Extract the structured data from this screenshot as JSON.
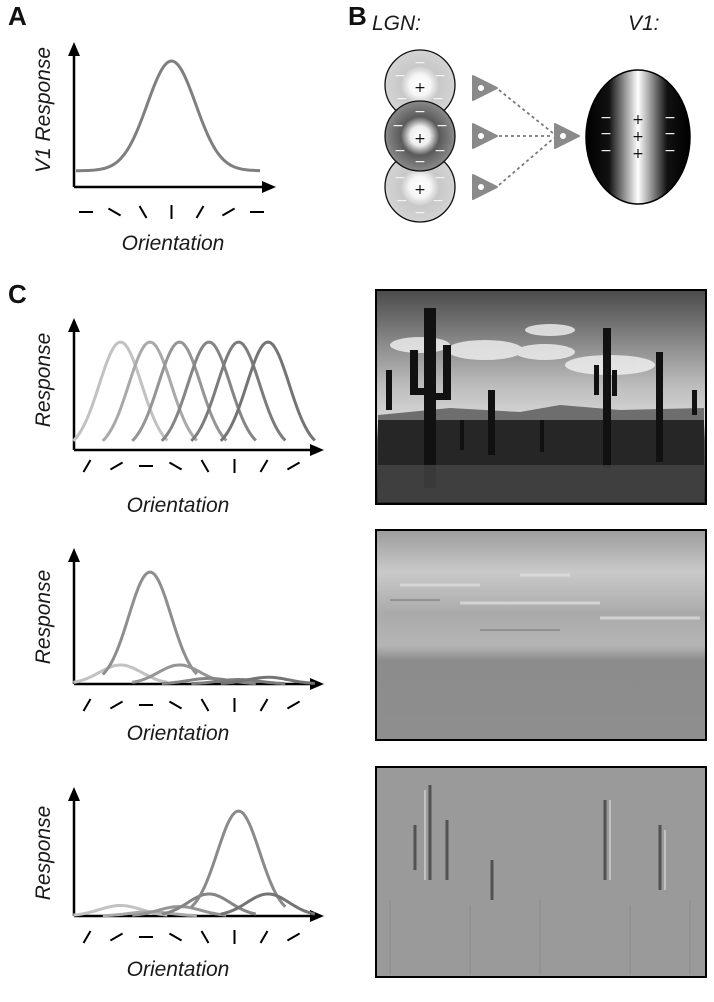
{
  "panels": {
    "a": {
      "letter": "A",
      "ylabel": "V1 Response",
      "xlabel": "Orientation",
      "orientations_deg": [
        0,
        -30,
        -60,
        90,
        60,
        30,
        0
      ]
    },
    "b": {
      "letter": "B",
      "lgn_label": "LGN:",
      "v1_label": "V1:",
      "plus": "+",
      "minus": "−"
    },
    "c": {
      "letter": "C",
      "ylabel": "Response",
      "xlabel": "Orientation",
      "orientations_deg": [
        60,
        30,
        0,
        -30,
        -60,
        90,
        60,
        30
      ]
    }
  },
  "chart_data": [
    {
      "type": "line",
      "panel": "A",
      "x": [
        0,
        1,
        2,
        3,
        4,
        5,
        6
      ],
      "series": [
        {
          "values": [
            0.07,
            0.1,
            0.45,
            1.0,
            0.45,
            0.1,
            0.07
          ]
        }
      ],
      "xlabel": "Orientation",
      "ylabel": "V1 Response"
    },
    {
      "type": "line",
      "panel": "C1",
      "x": [
        0,
        1,
        2,
        3,
        4,
        5,
        6,
        7
      ],
      "series": [
        {
          "values": [
            0.0,
            1.0,
            0.05,
            0,
            0,
            0,
            0,
            0
          ],
          "color": "#c2c2c2"
        },
        {
          "values": [
            0,
            0.05,
            1.0,
            0.05,
            0,
            0,
            0,
            0
          ],
          "color": "#a9a9a9"
        },
        {
          "values": [
            0,
            0,
            0.05,
            1.0,
            0.05,
            0,
            0,
            0
          ],
          "color": "#959595"
        },
        {
          "values": [
            0,
            0,
            0,
            0.05,
            1.0,
            0.05,
            0,
            0
          ],
          "color": "#858585"
        },
        {
          "values": [
            0,
            0,
            0,
            0,
            0.05,
            1.0,
            0.05,
            0
          ],
          "color": "#7c7c7c"
        },
        {
          "values": [
            0,
            0,
            0,
            0,
            0,
            0.05,
            1.0,
            0.05
          ],
          "color": "#747474"
        }
      ],
      "xlabel": "Orientation",
      "ylabel": "Response"
    },
    {
      "type": "line",
      "panel": "C2",
      "x": [
        0,
        1,
        2,
        3,
        4,
        5,
        6,
        7
      ],
      "series": [
        {
          "values": [
            0,
            0.17,
            0,
            0,
            0,
            0,
            0,
            0
          ],
          "color": "#c2c2c2"
        },
        {
          "values": [
            0,
            0,
            1.0,
            0,
            0,
            0,
            0,
            0
          ],
          "color": "#8e8e8e"
        },
        {
          "values": [
            0,
            0,
            0,
            0.17,
            0,
            0,
            0,
            0
          ],
          "color": "#959595"
        },
        {
          "values": [
            0,
            0,
            0,
            0,
            0.05,
            0,
            0,
            0
          ],
          "color": "#858585"
        },
        {
          "values": [
            0,
            0,
            0,
            0,
            0,
            0.04,
            0,
            0
          ],
          "color": "#7c7c7c"
        },
        {
          "values": [
            0,
            0,
            0,
            0,
            0,
            0,
            0.06,
            0
          ],
          "color": "#747474"
        }
      ],
      "xlabel": "Orientation",
      "ylabel": "Response"
    },
    {
      "type": "line",
      "panel": "C3",
      "x": [
        0,
        1,
        2,
        3,
        4,
        5,
        6,
        7
      ],
      "series": [
        {
          "values": [
            0,
            0.1,
            0,
            0,
            0,
            0,
            0,
            0
          ],
          "color": "#c2c2c2"
        },
        {
          "values": [
            0,
            0,
            0.04,
            0,
            0,
            0,
            0,
            0
          ],
          "color": "#a9a9a9"
        },
        {
          "values": [
            0,
            0,
            0,
            0.09,
            0,
            0,
            0,
            0
          ],
          "color": "#959595"
        },
        {
          "values": [
            0,
            0,
            0,
            0,
            0.21,
            0,
            0,
            0
          ],
          "color": "#858585"
        },
        {
          "values": [
            0,
            0,
            0,
            0,
            0,
            1.0,
            0,
            0
          ],
          "color": "#8a8a8a"
        },
        {
          "values": [
            0,
            0,
            0,
            0,
            0,
            0,
            0.21,
            0
          ],
          "color": "#747474"
        }
      ],
      "xlabel": "Orientation",
      "ylabel": "Response"
    }
  ]
}
